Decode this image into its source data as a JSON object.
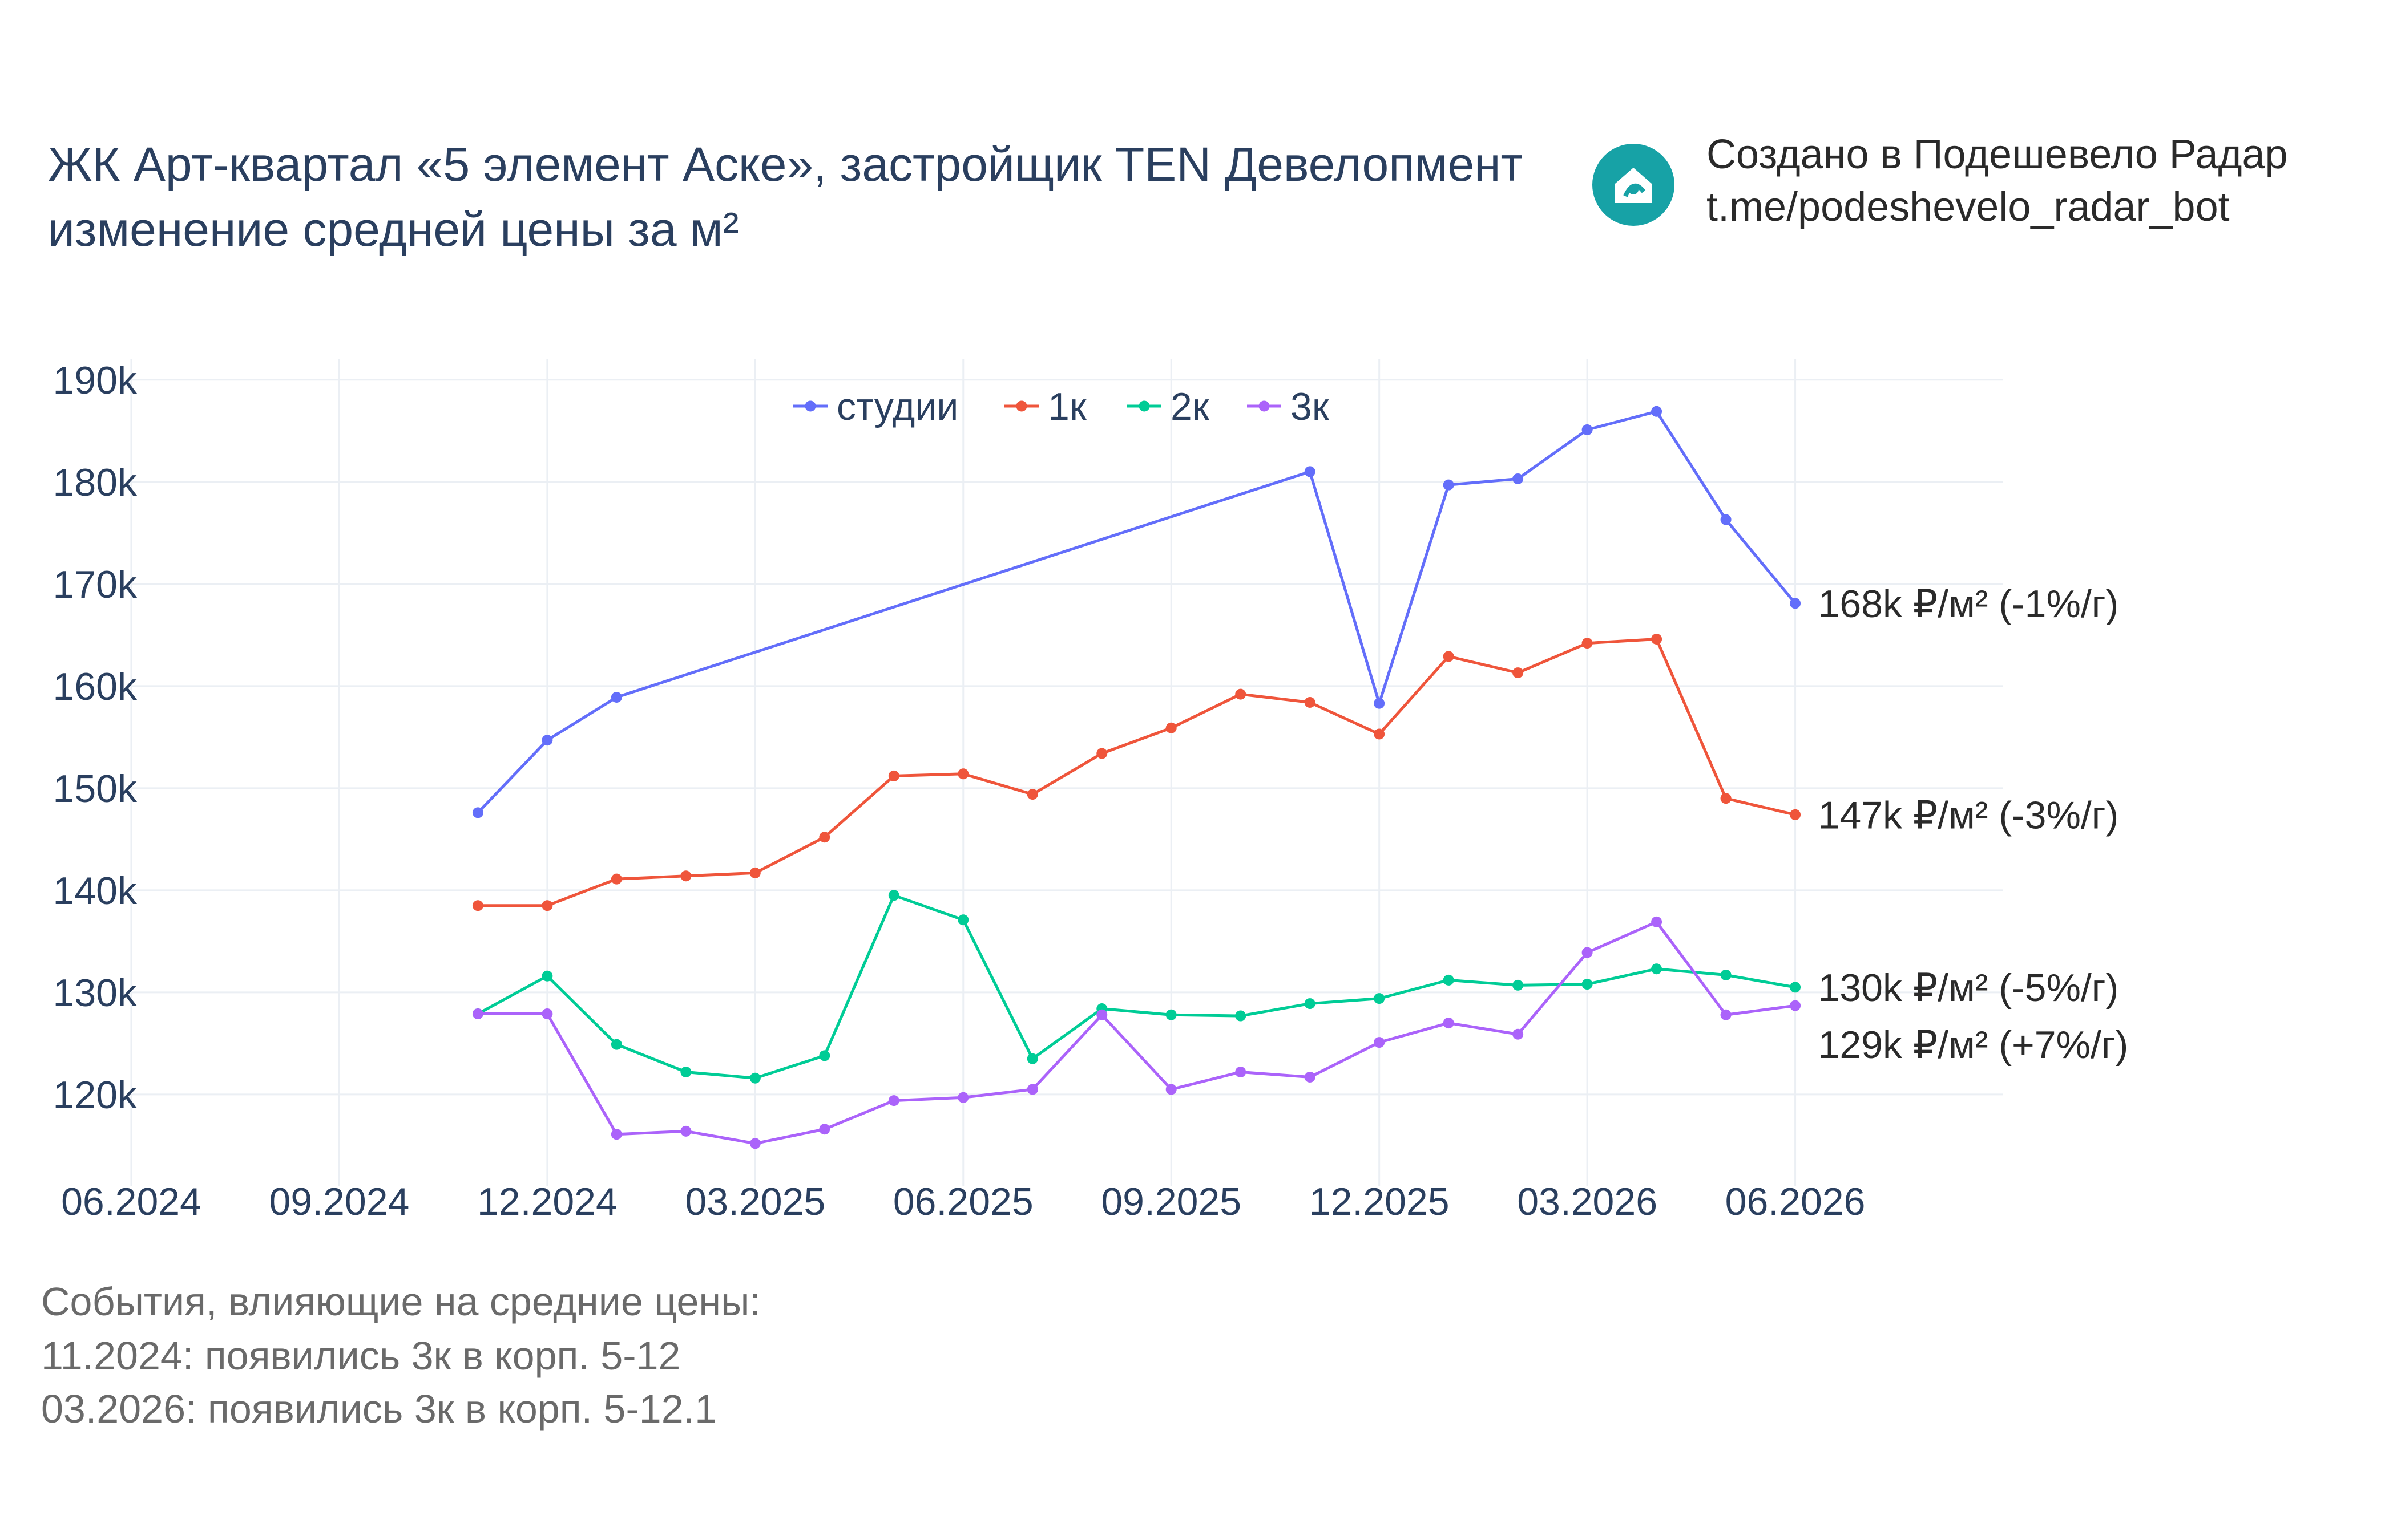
{
  "title": {
    "line1": "ЖК Арт-квартал «5 элемент Аске», застройщик TEN Девелопмент",
    "line2": "изменение средней цены за м²"
  },
  "credit": {
    "line1": "Создано в Подешевело Радар",
    "line2": "t.me/podeshevelo_radar_bot",
    "icon": "house-logo-icon",
    "icon_color": "#17a2a6"
  },
  "events": {
    "header": "События, влияющие на средние цены:",
    "items": [
      "11.2024: появились 3к в корп. 5-12",
      "03.2026: появились 3к в корп. 5-12.1"
    ]
  },
  "chart_data": {
    "type": "line",
    "x_ticks": [
      "06.2024",
      "09.2024",
      "12.2024",
      "03.2025",
      "06.2025",
      "09.2025",
      "12.2025",
      "03.2026",
      "06.2026"
    ],
    "y_ticks": [
      "120k",
      "130k",
      "140k",
      "150k",
      "160k",
      "170k",
      "180k",
      "190k"
    ],
    "ylim": [
      111000,
      192000
    ],
    "xlim": [
      "2024-06",
      "2026-09"
    ],
    "grid": true,
    "legend_position": "top-center",
    "series": [
      {
        "name": "студии",
        "color": "#636efa",
        "end_label": "168k ₽/м² (-1%/г)",
        "points": [
          {
            "x": "2024-11",
            "y": 147600
          },
          {
            "x": "2024-12",
            "y": 154700
          },
          {
            "x": "2025-01",
            "y": 158900
          },
          {
            "x": "2025-11",
            "y": 181000
          },
          {
            "x": "2025-12",
            "y": 158300
          },
          {
            "x": "2026-01",
            "y": 179700
          },
          {
            "x": "2026-02",
            "y": 180300
          },
          {
            "x": "2026-03",
            "y": 185100
          },
          {
            "x": "2026-04",
            "y": 186900
          },
          {
            "x": "2026-05",
            "y": 176300
          },
          {
            "x": "2026-06",
            "y": 168100
          }
        ]
      },
      {
        "name": "1к",
        "color": "#ef553b",
        "end_label": "147k ₽/м² (-3%/г)",
        "points": [
          {
            "x": "2024-11",
            "y": 138500
          },
          {
            "x": "2024-12",
            "y": 138500
          },
          {
            "x": "2025-01",
            "y": 141100
          },
          {
            "x": "2025-02",
            "y": 141400
          },
          {
            "x": "2025-03",
            "y": 141700
          },
          {
            "x": "2025-04",
            "y": 145200
          },
          {
            "x": "2025-05",
            "y": 151200
          },
          {
            "x": "2025-06",
            "y": 151400
          },
          {
            "x": "2025-07",
            "y": 149400
          },
          {
            "x": "2025-08",
            "y": 153400
          },
          {
            "x": "2025-09",
            "y": 155900
          },
          {
            "x": "2025-10",
            "y": 159200
          },
          {
            "x": "2025-11",
            "y": 158400
          },
          {
            "x": "2025-12",
            "y": 155300
          },
          {
            "x": "2026-01",
            "y": 162900
          },
          {
            "x": "2026-02",
            "y": 161300
          },
          {
            "x": "2026-03",
            "y": 164200
          },
          {
            "x": "2026-04",
            "y": 164600
          },
          {
            "x": "2026-05",
            "y": 149000
          },
          {
            "x": "2026-06",
            "y": 147400
          }
        ]
      },
      {
        "name": "2к",
        "color": "#00cc96",
        "end_label": "130k ₽/м² (-5%/г)",
        "points": [
          {
            "x": "2024-11",
            "y": 127900
          },
          {
            "x": "2024-12",
            "y": 131600
          },
          {
            "x": "2025-01",
            "y": 124900
          },
          {
            "x": "2025-02",
            "y": 122200
          },
          {
            "x": "2025-03",
            "y": 121600
          },
          {
            "x": "2025-04",
            "y": 123800
          },
          {
            "x": "2025-05",
            "y": 139500
          },
          {
            "x": "2025-06",
            "y": 137100
          },
          {
            "x": "2025-07",
            "y": 123500
          },
          {
            "x": "2025-08",
            "y": 128400
          },
          {
            "x": "2025-09",
            "y": 127800
          },
          {
            "x": "2025-10",
            "y": 127700
          },
          {
            "x": "2025-11",
            "y": 128900
          },
          {
            "x": "2025-12",
            "y": 129400
          },
          {
            "x": "2026-01",
            "y": 131200
          },
          {
            "x": "2026-02",
            "y": 130700
          },
          {
            "x": "2026-03",
            "y": 130800
          },
          {
            "x": "2026-04",
            "y": 132300
          },
          {
            "x": "2026-05",
            "y": 131700
          },
          {
            "x": "2026-06",
            "y": 130500
          }
        ]
      },
      {
        "name": "3к",
        "color": "#ab63fa",
        "end_label": "129k ₽/м² (+7%/г)",
        "points": [
          {
            "x": "2024-11",
            "y": 127900
          },
          {
            "x": "2024-12",
            "y": 127900
          },
          {
            "x": "2025-01",
            "y": 116100
          },
          {
            "x": "2025-02",
            "y": 116400
          },
          {
            "x": "2025-03",
            "y": 115200
          },
          {
            "x": "2025-04",
            "y": 116600
          },
          {
            "x": "2025-05",
            "y": 119400
          },
          {
            "x": "2025-06",
            "y": 119700
          },
          {
            "x": "2025-07",
            "y": 120500
          },
          {
            "x": "2025-08",
            "y": 127800
          },
          {
            "x": "2025-09",
            "y": 120500
          },
          {
            "x": "2025-10",
            "y": 122200
          },
          {
            "x": "2025-11",
            "y": 121700
          },
          {
            "x": "2025-12",
            "y": 125100
          },
          {
            "x": "2026-01",
            "y": 127000
          },
          {
            "x": "2026-02",
            "y": 125900
          },
          {
            "x": "2026-03",
            "y": 133900
          },
          {
            "x": "2026-04",
            "y": 136900
          },
          {
            "x": "2026-05",
            "y": 127800
          },
          {
            "x": "2026-06",
            "y": 128700
          }
        ]
      }
    ]
  }
}
